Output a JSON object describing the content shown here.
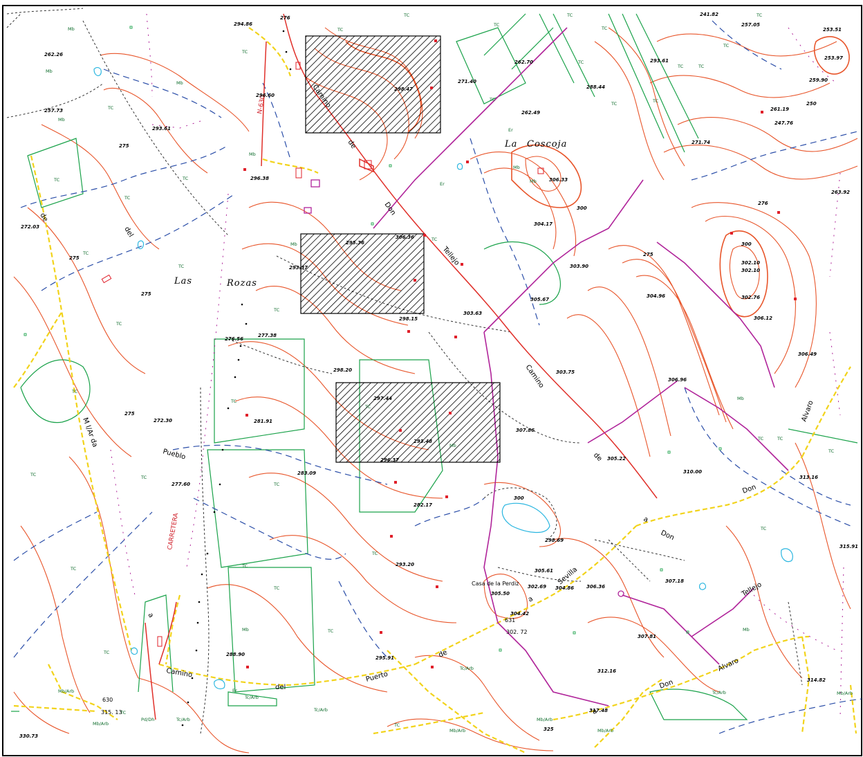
{
  "map": {
    "place_names": [
      {
        "id": "las-rozas-1",
        "text": "Las"
      },
      {
        "id": "las-rozas-2",
        "text": "Rozas"
      },
      {
        "id": "la-coscoja-1",
        "text": "La"
      },
      {
        "id": "la-coscoja-2",
        "text": "Coscoja"
      },
      {
        "id": "casa-perdiz",
        "text": "Casa de la Perdiz"
      }
    ],
    "road_labels": {
      "n630": "N-630",
      "carretera": "CARRETERA",
      "n630_bottom": "630",
      "n631": "631",
      "camino": "Camino",
      "del": "del",
      "puerto": "Puerto",
      "de": "de",
      "a": "a",
      "sevilla": "Sevilla",
      "don": "Don",
      "tellejo": "Tellejo",
      "alvaro": "Alvaro",
      "pueblo": "Pueblo",
      "m_laro": "M l/Ar da",
      "elevation_315": "315. 13",
      "elevation_302": "302. 72"
    },
    "elevations": [
      "294.86",
      "276",
      "262.26",
      "257.73",
      "293.61",
      "275",
      "272.03",
      "275",
      "296.60",
      "296.38",
      "293.37",
      "295.36",
      "306.36",
      "298.15",
      "303.63",
      "305.67",
      "303.90",
      "276.56",
      "277.38",
      "298.20",
      "297.44",
      "293.48",
      "296.37",
      "281.91",
      "272.30",
      "275",
      "277.60",
      "283.09",
      "282.17",
      "300",
      "298.69",
      "305.61",
      "302.69",
      "304.86",
      "306.36",
      "305.50",
      "304.42",
      "302.72",
      "293.20",
      "288.90",
      "295.91",
      "307.86",
      "305.22",
      "303.75",
      "306.96",
      "304.96",
      "310.00",
      "313.16",
      "315.91",
      "307.18",
      "307.81",
      "312.16",
      "317.48",
      "314.82",
      "325",
      "330.73",
      "298.47",
      "271.40",
      "262.70",
      "288.44",
      "262.49",
      "306.33",
      "300",
      "304.17",
      "271.74",
      "293.61",
      "241.82",
      "257.05",
      "253.51",
      "253.97",
      "259.90",
      "261.19",
      "250",
      "247.76",
      "263.92",
      "276",
      "300",
      "302.10",
      "302.10",
      "302.76",
      "306.12",
      "306.49",
      "275"
    ],
    "vegetation": [
      "TC",
      "Mb",
      "Er",
      "Tc/Arb",
      "Mb/Arb",
      "Pd/Dh",
      "TC"
    ]
  }
}
